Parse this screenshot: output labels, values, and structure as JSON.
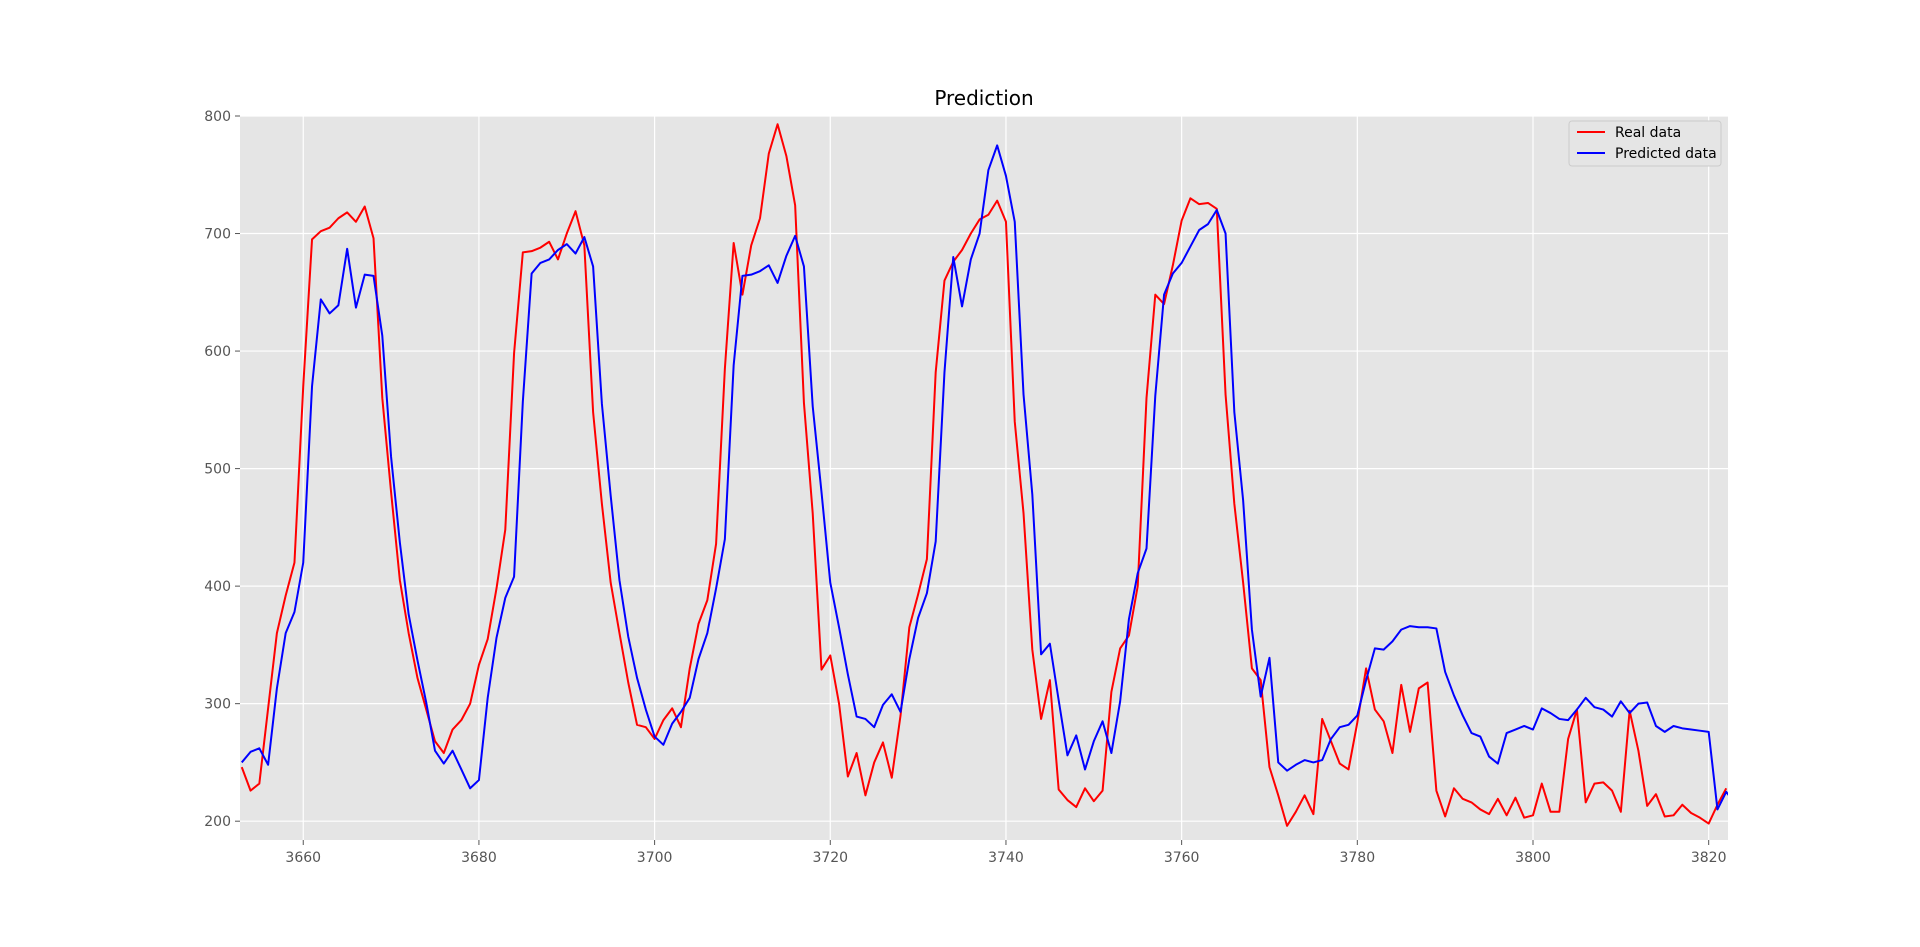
{
  "chart_data": {
    "type": "line",
    "title": "Prediction",
    "xlabel": "",
    "ylabel": "",
    "xlim": [
      3652.8,
      3822.2
    ],
    "ylim": [
      184,
      800
    ],
    "x_ticks": [
      3660,
      3680,
      3700,
      3720,
      3740,
      3760,
      3780,
      3800,
      3820
    ],
    "y_ticks": [
      200,
      300,
      400,
      500,
      600,
      700,
      800
    ],
    "grid": true,
    "legend_position": "top-right",
    "colors": {
      "background": "#e5e5e5",
      "grid": "#ffffff",
      "real": "#ff0000",
      "predicted": "#0000ff"
    },
    "x_start": 3653,
    "series": [
      {
        "name": "Real data",
        "color": "#ff0000",
        "values": [
          246,
          226,
          232,
          296,
          360,
          392,
          420,
          570,
          695,
          702,
          705,
          713,
          718,
          710,
          723,
          696,
          560,
          480,
          405,
          360,
          322,
          295,
          268,
          258,
          278,
          286,
          300,
          333,
          355,
          398,
          448,
          598,
          684,
          685,
          688,
          693,
          678,
          700,
          719,
          690,
          548,
          470,
          403,
          360,
          318,
          282,
          280,
          270,
          286,
          296,
          280,
          330,
          368,
          388,
          436,
          585,
          692,
          648,
          690,
          713,
          768,
          793,
          766,
          724,
          556,
          462,
          329,
          341,
          300,
          238,
          258,
          222,
          250,
          267,
          237,
          290,
          365,
          393,
          423,
          582,
          660,
          676,
          686,
          700,
          712,
          716,
          728,
          710,
          540,
          462,
          346,
          287,
          320,
          227,
          218,
          212,
          228,
          217,
          226,
          310,
          347,
          358,
          400,
          560,
          648,
          640,
          673,
          711,
          730,
          725,
          726,
          721,
          563,
          470,
          403,
          330,
          320,
          246,
          222,
          196,
          208,
          222,
          206,
          287,
          268,
          249,
          244,
          284,
          330,
          295,
          285,
          258,
          316,
          276,
          313,
          318,
          226,
          204,
          228,
          219,
          216,
          210,
          206,
          219,
          205,
          220,
          203,
          205,
          232,
          208,
          208,
          270,
          295,
          216,
          232,
          233,
          226,
          208,
          294,
          260,
          213,
          223,
          204,
          205,
          214,
          207,
          203,
          198,
          214,
          228
        ]
      },
      {
        "name": "Predicted data",
        "color": "#0000ff",
        "values": [
          250,
          259,
          262,
          248,
          313,
          360,
          378,
          420,
          570,
          644,
          632,
          639,
          687,
          637,
          665,
          664,
          613,
          510,
          437,
          376,
          337,
          301,
          260,
          249,
          260,
          244,
          228,
          235,
          305,
          356,
          390,
          408,
          557,
          666,
          675,
          678,
          686,
          691,
          683,
          697,
          672,
          555,
          477,
          405,
          357,
          322,
          295,
          272,
          265,
          283,
          293,
          305,
          338,
          360,
          398,
          440,
          588,
          664,
          665,
          668,
          673,
          658,
          681,
          698,
          672,
          553,
          480,
          403,
          365,
          325,
          289,
          287,
          280,
          299,
          308,
          293,
          338,
          373,
          394,
          438,
          582,
          680,
          638,
          678,
          700,
          754,
          775,
          749,
          710,
          563,
          478,
          342,
          351,
          303,
          256,
          273,
          244,
          268,
          285,
          258,
          302,
          372,
          411,
          432,
          562,
          648,
          666,
          675,
          689,
          703,
          708,
          720,
          700,
          548,
          473,
          363,
          306,
          339,
          250,
          243,
          248,
          252,
          250,
          252,
          270,
          280,
          282,
          290,
          320,
          347,
          346,
          353,
          363,
          366,
          365,
          365,
          364,
          327,
          307,
          290,
          275,
          272,
          255,
          249,
          275,
          278,
          281,
          278,
          296,
          292,
          287,
          286,
          295,
          305,
          297,
          295,
          289,
          302,
          292,
          300,
          301,
          281,
          276,
          281,
          279,
          278,
          277,
          276,
          210,
          225,
          215
        ]
      }
    ]
  }
}
